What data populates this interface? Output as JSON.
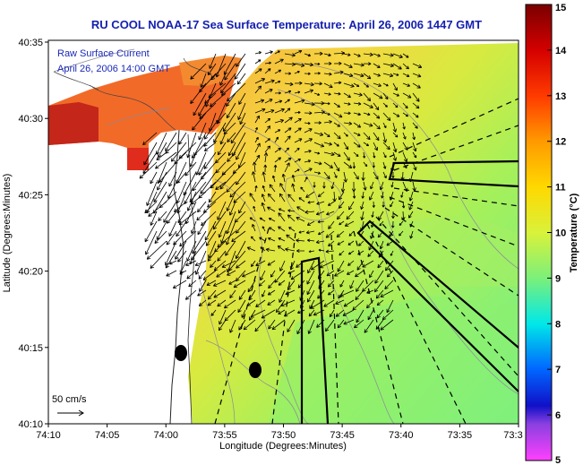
{
  "title": "RU COOL  NOAA-17  Sea Surface Temperature:  April 26, 2006 1447 GMT",
  "map": {
    "x_axis_label": "Longitude (Degrees:Minutes)",
    "y_axis_label": "Latitude (Degrees:Minutes)",
    "x_ticks": [
      "74:10",
      "74:05",
      "74:00",
      "73:55",
      "73:50",
      "73:45",
      "73:40",
      "73:35",
      "73:3"
    ],
    "y_ticks": [
      "40:35",
      "40:30",
      "40:25",
      "40:20",
      "40:15",
      "40:10"
    ],
    "current_legend_line1": "Raw Surface Current",
    "current_legend_line2": "April 26, 2006 14:00 GMT",
    "scale_label": "50 cm/s"
  },
  "colorbar": {
    "label": "Temperature (°C)",
    "ticks": [
      "15",
      "14",
      "13",
      "12",
      "11",
      "10",
      "9",
      "8",
      "7",
      "6",
      "5"
    ]
  }
}
